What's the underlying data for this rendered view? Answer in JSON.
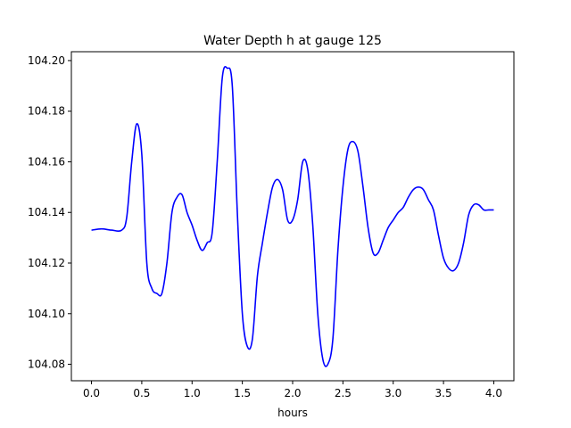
{
  "chart_data": {
    "type": "line",
    "title": "Water Depth h at gauge 125",
    "xlabel": "hours",
    "ylabel": "",
    "xlim": [
      -0.2,
      4.2
    ],
    "ylim": [
      104.0735,
      104.2035
    ],
    "xticks": [
      0.0,
      0.5,
      1.0,
      1.5,
      2.0,
      2.5,
      3.0,
      3.5,
      4.0
    ],
    "xtick_labels": [
      "0.0",
      "0.5",
      "1.0",
      "1.5",
      "2.0",
      "2.5",
      "3.0",
      "3.5",
      "4.0"
    ],
    "yticks": [
      104.08,
      104.1,
      104.12,
      104.14,
      104.16,
      104.18,
      104.2
    ],
    "ytick_labels": [
      "104.08",
      "104.10",
      "104.12",
      "104.14",
      "104.16",
      "104.18",
      "104.20"
    ],
    "grid": false,
    "series": [
      {
        "color": "#0000ff",
        "x": [
          0.0,
          0.1,
          0.2,
          0.3,
          0.35,
          0.4,
          0.45,
          0.5,
          0.55,
          0.6,
          0.65,
          0.7,
          0.75,
          0.8,
          0.85,
          0.9,
          0.95,
          1.0,
          1.05,
          1.1,
          1.15,
          1.2,
          1.25,
          1.3,
          1.35,
          1.4,
          1.45,
          1.5,
          1.55,
          1.6,
          1.65,
          1.7,
          1.75,
          1.8,
          1.85,
          1.9,
          1.95,
          2.0,
          2.05,
          2.1,
          2.15,
          2.2,
          2.25,
          2.3,
          2.35,
          2.4,
          2.45,
          2.5,
          2.55,
          2.6,
          2.65,
          2.7,
          2.75,
          2.8,
          2.85,
          2.9,
          2.95,
          3.0,
          3.05,
          3.1,
          3.15,
          3.2,
          3.25,
          3.3,
          3.35,
          3.4,
          3.45,
          3.5,
          3.55,
          3.6,
          3.65,
          3.7,
          3.75,
          3.8,
          3.85,
          3.9,
          3.95,
          4.0
        ],
        "y": [
          104.133,
          104.1335,
          104.133,
          104.133,
          104.138,
          104.16,
          104.175,
          104.163,
          104.12,
          104.11,
          104.108,
          104.108,
          104.12,
          104.14,
          104.146,
          104.147,
          104.14,
          104.135,
          104.129,
          104.125,
          104.128,
          104.132,
          104.16,
          104.193,
          104.197,
          104.19,
          104.14,
          104.1,
          104.087,
          104.09,
          104.115,
          104.128,
          104.14,
          104.15,
          104.153,
          104.149,
          104.137,
          104.137,
          104.145,
          104.16,
          104.157,
          104.135,
          104.1,
          104.082,
          104.08,
          104.09,
          104.125,
          104.15,
          104.165,
          104.168,
          104.164,
          104.15,
          104.134,
          104.124,
          104.124,
          104.129,
          104.134,
          104.137,
          104.14,
          104.142,
          104.146,
          104.149,
          104.15,
          104.149,
          104.145,
          104.141,
          104.131,
          104.122,
          104.118,
          104.117,
          104.12,
          104.128,
          104.139,
          104.143,
          104.143,
          104.141,
          104.141,
          104.141
        ]
      }
    ]
  }
}
